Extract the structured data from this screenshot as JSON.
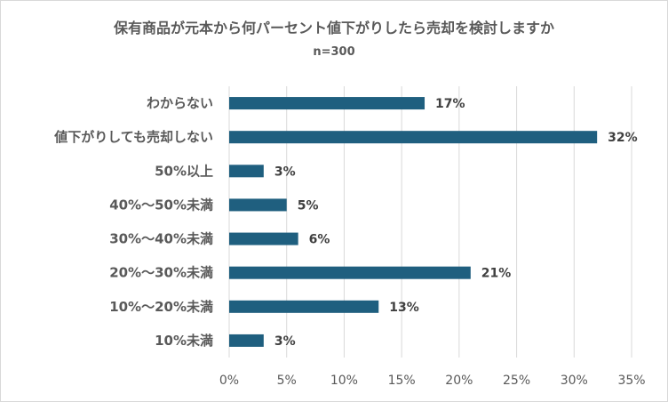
{
  "chart_data": {
    "type": "bar",
    "orientation": "horizontal",
    "title": "保有商品が元本から何パーセント値下がりしたら売却を検討しますか",
    "subtitle": "n=300",
    "categories": [
      "わからない",
      "値下がりしても売却しない",
      "50%以上",
      "40%～50%未満",
      "30%～40%未満",
      "20%～30%未満",
      "10%～20%未満",
      "10%未満"
    ],
    "values": [
      17,
      32,
      3,
      5,
      6,
      21,
      13,
      3
    ],
    "data_labels": [
      "17%",
      "32%",
      "3%",
      "5%",
      "6%",
      "21%",
      "13%",
      "3%"
    ],
    "xlim": [
      0,
      35
    ],
    "x_ticks": [
      0,
      5,
      10,
      15,
      20,
      25,
      30,
      35
    ],
    "x_tick_labels": [
      "0%",
      "5%",
      "10%",
      "15%",
      "20%",
      "25%",
      "30%",
      "35%"
    ],
    "grid": true,
    "bar_color": "#1f5f7f",
    "xlabel": "",
    "ylabel": ""
  }
}
